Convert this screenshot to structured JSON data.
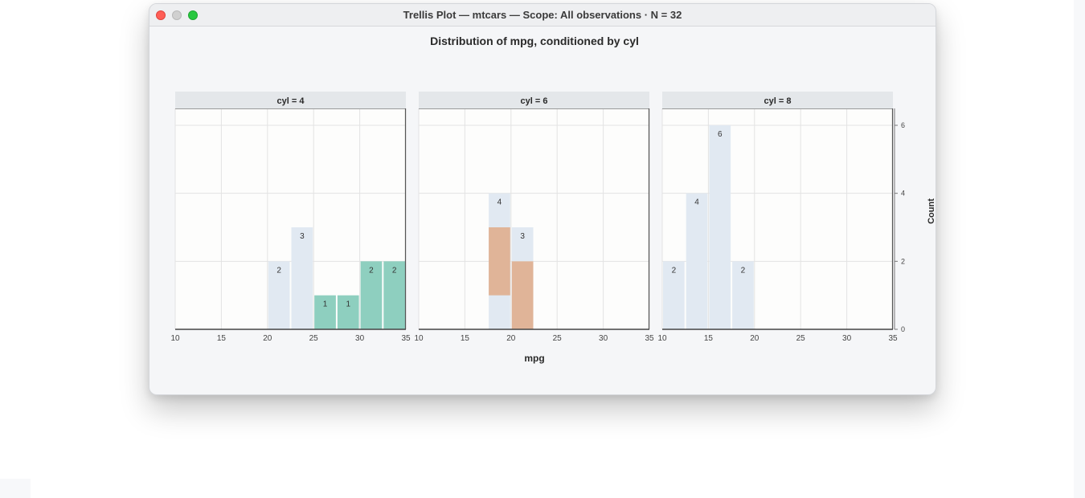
{
  "window": {
    "title": "Trellis Plot — mtcars — Scope: All observations · N = 32"
  },
  "chart_data": {
    "type": "bar",
    "title": "Distribution of mpg, conditioned by cyl",
    "xlabel": "mpg",
    "ylabel": "Count",
    "xlim": [
      10,
      35
    ],
    "ylim": [
      0,
      6.5
    ],
    "x_ticks": [
      "10",
      "15",
      "20",
      "25",
      "30",
      "35"
    ],
    "y_ticks": [
      "0",
      "2",
      "4",
      "6"
    ],
    "grid": true,
    "bin_width": 2.5,
    "colors": {
      "total": "#e1e9f2",
      "cyl4": "#8ecfbf",
      "cyl6": "#e0b498",
      "cyl8": "#e1e9f2"
    },
    "panels": [
      {
        "label": "cyl = 4",
        "bars": [
          {
            "x0": 20,
            "total": 2,
            "group": 0,
            "label": "2"
          },
          {
            "x0": 22.5,
            "total": 3,
            "group": 0,
            "label": "3"
          },
          {
            "x0": 25,
            "total": 1,
            "group": 1,
            "label": "1"
          },
          {
            "x0": 27.5,
            "total": 1,
            "group": 1,
            "label": "1"
          },
          {
            "x0": 30,
            "total": 2,
            "group": 2,
            "label": "2"
          },
          {
            "x0": 32.5,
            "total": 2,
            "group": 2,
            "label": "2"
          }
        ]
      },
      {
        "label": "cyl = 6",
        "bars": [
          {
            "x0": 17.5,
            "total": 4,
            "group": 3,
            "label": "4"
          },
          {
            "x0": 20,
            "total": 3,
            "group": 2,
            "label": "3"
          }
        ]
      },
      {
        "label": "cyl = 8",
        "bars": [
          {
            "x0": 10,
            "total": 2,
            "group": 0,
            "label": "2"
          },
          {
            "x0": 12.5,
            "total": 4,
            "group": 0,
            "label": "4"
          },
          {
            "x0": 15,
            "total": 6,
            "group": 0,
            "label": "6"
          },
          {
            "x0": 17.5,
            "total": 2,
            "group": 0,
            "label": "2"
          }
        ]
      }
    ]
  }
}
